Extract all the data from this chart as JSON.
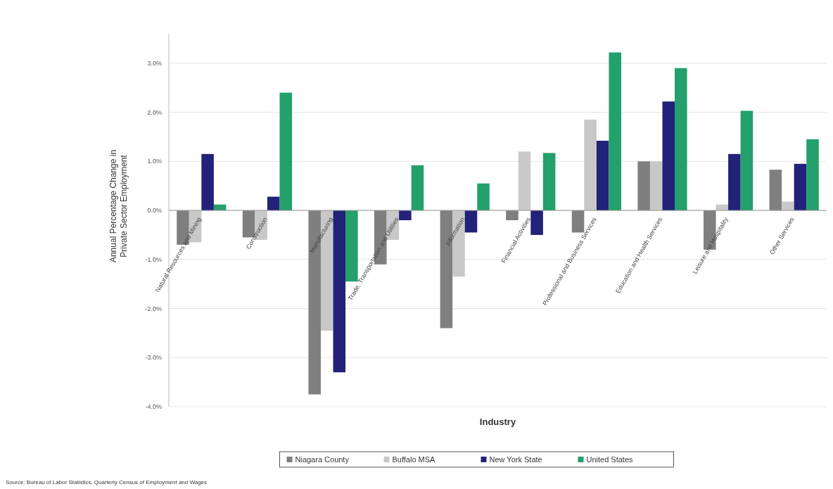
{
  "chart_data": {
    "type": "bar",
    "xlabel": "Industry",
    "ylabel": "Annual Percentage Change in Private Sector Employment",
    "categories": [
      "Natural Resources and Mining",
      "Construction",
      "Manufacturing",
      "Trade, Transportation and Utilities",
      "Information",
      "Financial Activities",
      "Professional and Business Services",
      "Education and Health Services",
      "Leisure and Hospitality",
      "Other Services"
    ],
    "series": [
      {
        "name": "Niagara County",
        "color": "#7f7f7f",
        "values": [
          -0.7,
          -0.55,
          -3.75,
          -1.1,
          -2.4,
          -0.2,
          -0.45,
          1.0,
          -0.8,
          0.83
        ]
      },
      {
        "name": "Buffalo MSA",
        "color": "#c8c8c8",
        "values": [
          -0.65,
          -0.6,
          -2.45,
          -0.6,
          -1.35,
          1.2,
          1.85,
          1.0,
          0.12,
          0.18
        ]
      },
      {
        "name": "New York State",
        "color": "#22227a",
        "values": [
          1.15,
          0.28,
          -3.3,
          -0.2,
          -0.45,
          -0.5,
          1.42,
          2.22,
          1.15,
          0.95
        ]
      },
      {
        "name": "United States",
        "color": "#23a06b",
        "values": [
          0.12,
          2.4,
          -1.45,
          0.92,
          0.55,
          1.17,
          3.22,
          2.9,
          2.03,
          1.45
        ]
      }
    ],
    "ylim": [
      -4,
      3.6
    ],
    "yticks": [
      {
        "value": -4,
        "label": "-4.0%"
      },
      {
        "value": -3,
        "label": "-3.0%"
      },
      {
        "value": -2,
        "label": "-2.0%"
      },
      {
        "value": -1,
        "label": "-1.0%"
      },
      {
        "value": 0,
        "label": "0.0%"
      },
      {
        "value": 1,
        "label": "1.0%"
      },
      {
        "value": 2,
        "label": "2.0%"
      },
      {
        "value": 3,
        "label": "3.0%"
      }
    ],
    "grid": "y",
    "legend": "bottom",
    "annotations": [
      "Source: Bureau of Labor Statistics, Quarterly Census of Employment and Wages"
    ]
  }
}
